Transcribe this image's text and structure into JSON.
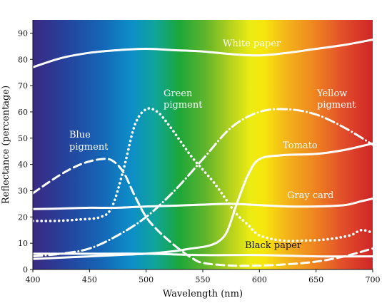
{
  "chart_data": {
    "type": "line",
    "title": "",
    "xlabel": "Wavelength (nm)",
    "ylabel": "Reflectance (percentage)",
    "xlim": [
      400,
      700
    ],
    "ylim": [
      0,
      95
    ],
    "xticks": [
      400,
      450,
      500,
      550,
      600,
      650,
      700
    ],
    "yticks": [
      0,
      10,
      20,
      30,
      40,
      50,
      60,
      70,
      80,
      90
    ],
    "background": "visible spectrum gradient (violet to red)",
    "grid": false,
    "series": [
      {
        "name": "White paper",
        "style": "solid",
        "color": "#ffffff",
        "x": [
          400,
          425,
          450,
          475,
          500,
          525,
          550,
          575,
          600,
          625,
          650,
          675,
          700
        ],
        "y": [
          77,
          80.5,
          82.5,
          83.5,
          84,
          83.5,
          83,
          82,
          81.5,
          82.5,
          84,
          85.5,
          87.5
        ]
      },
      {
        "name": "Green pigment",
        "style": "dotted",
        "color": "#ffffff",
        "x": [
          400,
          420,
          440,
          460,
          470,
          480,
          490,
          500,
          510,
          520,
          530,
          540,
          550,
          560,
          570,
          580,
          590,
          600,
          620,
          640,
          660,
          680,
          690,
          700
        ],
        "y": [
          18.5,
          18.5,
          19,
          20,
          24,
          38,
          55,
          61,
          60,
          55,
          49,
          43,
          38,
          33,
          27,
          21,
          17,
          13,
          11,
          11,
          11.5,
          13,
          15,
          14
        ]
      },
      {
        "name": "Yellow pigment",
        "style": "dashdot",
        "color": "#ffffff",
        "x": [
          400,
          425,
          450,
          475,
          500,
          525,
          550,
          575,
          600,
          625,
          650,
          675,
          700
        ],
        "y": [
          5,
          6,
          8,
          13,
          20,
          30,
          42,
          54,
          60,
          61,
          59,
          54,
          47.5
        ]
      },
      {
        "name": "Blue pigment",
        "style": "dashed",
        "color": "#ffffff",
        "x": [
          400,
          415,
          430,
          445,
          460,
          470,
          480,
          490,
          500,
          510,
          520,
          530,
          540,
          550,
          575,
          600,
          625,
          650,
          675,
          700
        ],
        "y": [
          29,
          33.5,
          37.5,
          40.5,
          42,
          41.5,
          37,
          28,
          20,
          15,
          11,
          7.5,
          4.5,
          2.5,
          1.5,
          1.5,
          2,
          3,
          5,
          8
        ]
      },
      {
        "name": "Tomato",
        "style": "solid",
        "color": "#ffffff",
        "x": [
          400,
          425,
          450,
          475,
          500,
          525,
          540,
          555,
          565,
          572,
          580,
          590,
          600,
          620,
          650,
          675,
          700
        ],
        "y": [
          4,
          4.5,
          5,
          5.5,
          6,
          7,
          8,
          9,
          11,
          15,
          25,
          36,
          42,
          43.5,
          44,
          45.5,
          48
        ]
      },
      {
        "name": "Gray card",
        "style": "solid",
        "color": "#ffffff",
        "x": [
          400,
          425,
          450,
          475,
          500,
          525,
          550,
          575,
          600,
          625,
          650,
          675,
          690,
          700
        ],
        "y": [
          23,
          23.2,
          23.5,
          23.5,
          24,
          24.3,
          24.7,
          25,
          24.5,
          24,
          24,
          24.5,
          26,
          27
        ]
      },
      {
        "name": "Black paper",
        "style": "solid",
        "color": "#ffffff",
        "x": [
          400,
          450,
          500,
          550,
          600,
          650,
          700
        ],
        "y": [
          6,
          6,
          6,
          5.5,
          5.5,
          5,
          5
        ]
      }
    ]
  },
  "labels": {
    "white_paper": "White paper",
    "green_1": "Green",
    "green_2": "pigment",
    "yellow_1": "Yellow",
    "yellow_2": "pigment",
    "blue_1": "Blue",
    "blue_2": "pigment",
    "tomato": "Tomato",
    "gray_card": "Gray card",
    "black_paper": "Black paper"
  }
}
